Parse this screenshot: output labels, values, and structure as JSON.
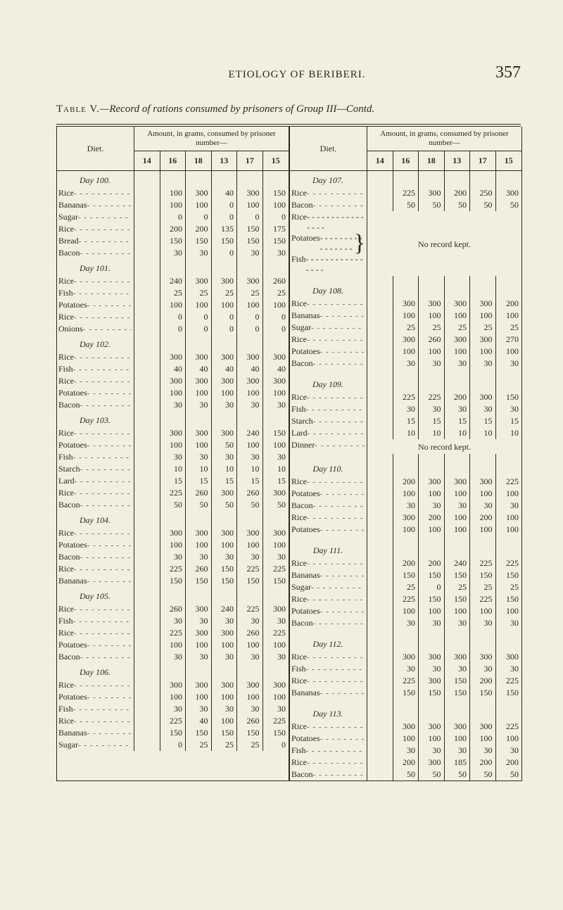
{
  "running_head": {
    "title": "ETIOLOGY OF BERIBERI.",
    "page_no": "357"
  },
  "caption": {
    "prefix": "Table V.",
    "body": "—Record of rations consumed by prisoners of Group III—Contd."
  },
  "header": {
    "diet": "Diet.",
    "amount": "Amount, in grams, consumed by prisoner number—"
  },
  "left": {
    "cols": [
      "14",
      "16",
      "18",
      "13",
      "17",
      "15"
    ],
    "rows": [
      {
        "type": "day",
        "label": "Day 100."
      },
      {
        "label": "Rice",
        "v": [
          "",
          "100",
          "300",
          "40",
          "300",
          "150"
        ]
      },
      {
        "label": "Bananas",
        "v": [
          "",
          "100",
          "100",
          "0",
          "100",
          "100"
        ]
      },
      {
        "label": "Sugar",
        "v": [
          "",
          "0",
          "0",
          "0",
          "0",
          "0"
        ]
      },
      {
        "label": "Rice",
        "v": [
          "",
          "200",
          "200",
          "135",
          "150",
          "175"
        ]
      },
      {
        "label": "Bread",
        "v": [
          "",
          "150",
          "150",
          "150",
          "150",
          "150"
        ]
      },
      {
        "label": "Bacon",
        "v": [
          "",
          "30",
          "30",
          "0",
          "30",
          "30"
        ]
      },
      {
        "type": "day",
        "label": "Day 101."
      },
      {
        "label": "Rice",
        "v": [
          "",
          "240",
          "300",
          "300",
          "300",
          "260"
        ]
      },
      {
        "label": "Fish",
        "v": [
          "",
          "25",
          "25",
          "25",
          "25",
          "25"
        ]
      },
      {
        "label": "Potatoes",
        "v": [
          "",
          "100",
          "100",
          "100",
          "100",
          "100"
        ]
      },
      {
        "label": "Rice",
        "v": [
          "",
          "0",
          "0",
          "0",
          "0",
          "0"
        ]
      },
      {
        "label": "Onions",
        "v": [
          "",
          "0",
          "0",
          "0",
          "0",
          "0"
        ]
      },
      {
        "type": "day",
        "label": "Day 102."
      },
      {
        "label": "Rice",
        "v": [
          "",
          "300",
          "300",
          "300",
          "300",
          "300"
        ]
      },
      {
        "label": "Fish",
        "v": [
          "",
          "40",
          "40",
          "40",
          "40",
          "40"
        ]
      },
      {
        "label": "Rice",
        "v": [
          "",
          "300",
          "300",
          "300",
          "300",
          "300"
        ]
      },
      {
        "label": "Potatoes",
        "v": [
          "",
          "100",
          "100",
          "100",
          "100",
          "100"
        ]
      },
      {
        "label": "Bacon",
        "v": [
          "",
          "30",
          "30",
          "30",
          "30",
          "30"
        ]
      },
      {
        "type": "day",
        "label": "Day 103."
      },
      {
        "label": "Rice",
        "v": [
          "",
          "300",
          "300",
          "300",
          "240",
          "150"
        ]
      },
      {
        "label": "Potatoes",
        "v": [
          "",
          "100",
          "100",
          "50",
          "100",
          "100"
        ]
      },
      {
        "label": "Fish",
        "v": [
          "",
          "30",
          "30",
          "30",
          "30",
          "30"
        ]
      },
      {
        "label": "Starch",
        "v": [
          "",
          "10",
          "10",
          "10",
          "10",
          "10"
        ]
      },
      {
        "label": "Lard",
        "v": [
          "",
          "15",
          "15",
          "15",
          "15",
          "15"
        ]
      },
      {
        "label": "Rice",
        "v": [
          "",
          "225",
          "260",
          "300",
          "260",
          "300"
        ]
      },
      {
        "label": "Bacon",
        "v": [
          "",
          "50",
          "50",
          "50",
          "50",
          "50"
        ]
      },
      {
        "type": "day",
        "label": "Day 104."
      },
      {
        "label": "Rice",
        "v": [
          "",
          "300",
          "300",
          "300",
          "300",
          "300"
        ]
      },
      {
        "label": "Potatoes",
        "v": [
          "",
          "100",
          "100",
          "100",
          "100",
          "100"
        ]
      },
      {
        "label": "Bacon",
        "v": [
          "",
          "30",
          "30",
          "30",
          "30",
          "30"
        ]
      },
      {
        "label": "Rice",
        "v": [
          "",
          "225",
          "260",
          "150",
          "225",
          "225"
        ]
      },
      {
        "label": "Bananas",
        "v": [
          "",
          "150",
          "150",
          "150",
          "150",
          "150"
        ]
      },
      {
        "type": "day",
        "label": "Day 105."
      },
      {
        "label": "Rice",
        "v": [
          "",
          "260",
          "300",
          "240",
          "225",
          "300"
        ]
      },
      {
        "label": "Fish",
        "v": [
          "",
          "30",
          "30",
          "30",
          "30",
          "30"
        ]
      },
      {
        "label": "Rice",
        "v": [
          "",
          "225",
          "300",
          "300",
          "260",
          "225"
        ]
      },
      {
        "label": "Potatoes",
        "v": [
          "",
          "100",
          "100",
          "100",
          "100",
          "100"
        ]
      },
      {
        "label": "Bacon",
        "v": [
          "",
          "30",
          "30",
          "30",
          "30",
          "30"
        ]
      },
      {
        "type": "day",
        "label": "Day 106."
      },
      {
        "label": "Rice",
        "v": [
          "",
          "300",
          "300",
          "300",
          "300",
          "300"
        ]
      },
      {
        "label": "Potatoes",
        "v": [
          "",
          "100",
          "100",
          "100",
          "100",
          "100"
        ]
      },
      {
        "label": "Fish",
        "v": [
          "",
          "30",
          "30",
          "30",
          "30",
          "30"
        ]
      },
      {
        "label": "Rice",
        "v": [
          "",
          "225",
          "40",
          "100",
          "260",
          "225"
        ]
      },
      {
        "label": "Bananas",
        "v": [
          "",
          "150",
          "150",
          "150",
          "150",
          "150"
        ]
      },
      {
        "label": "Sugar",
        "v": [
          "",
          "0",
          "25",
          "25",
          "25",
          "0"
        ]
      }
    ]
  },
  "right": {
    "cols": [
      "14",
      "16",
      "18",
      "13",
      "17",
      "15"
    ],
    "rows": [
      {
        "type": "day",
        "label": "Day 107."
      },
      {
        "label": "Rice",
        "v": [
          "",
          "225",
          "300",
          "200",
          "250",
          "300"
        ]
      },
      {
        "label": "Bacon",
        "v": [
          "",
          "50",
          "50",
          "50",
          "50",
          "50"
        ]
      },
      {
        "type": "brace",
        "labels": [
          "Rice",
          "Potatoes",
          "Fish"
        ],
        "note": "No record kept."
      },
      {
        "type": "spacer"
      },
      {
        "type": "day",
        "label": "Day 108."
      },
      {
        "label": "Rice",
        "v": [
          "",
          "300",
          "300",
          "300",
          "300",
          "200"
        ]
      },
      {
        "label": "Bananas",
        "v": [
          "",
          "100",
          "100",
          "100",
          "100",
          "100"
        ]
      },
      {
        "label": "Sugar",
        "v": [
          "",
          "25",
          "25",
          "25",
          "25",
          "25"
        ]
      },
      {
        "label": "Rice",
        "v": [
          "",
          "300",
          "260",
          "300",
          "300",
          "270"
        ]
      },
      {
        "label": "Potatoes",
        "v": [
          "",
          "100",
          "100",
          "100",
          "100",
          "100"
        ]
      },
      {
        "label": "Bacon",
        "v": [
          "",
          "30",
          "30",
          "30",
          "30",
          "30"
        ]
      },
      {
        "type": "spacer"
      },
      {
        "type": "day",
        "label": "Day 109."
      },
      {
        "label": "Rice",
        "v": [
          "",
          "225",
          "225",
          "200",
          "300",
          "150"
        ]
      },
      {
        "label": "Fish",
        "v": [
          "",
          "30",
          "30",
          "30",
          "30",
          "30"
        ]
      },
      {
        "label": "Starch",
        "v": [
          "",
          "15",
          "15",
          "15",
          "15",
          "15"
        ]
      },
      {
        "label": "Lard",
        "v": [
          "",
          "10",
          "10",
          "10",
          "10",
          "10"
        ]
      },
      {
        "type": "note",
        "label": "Dinner",
        "note": "No record kept."
      },
      {
        "type": "spacer"
      },
      {
        "type": "day",
        "label": "Day 110."
      },
      {
        "label": "Rice",
        "v": [
          "",
          "200",
          "300",
          "300",
          "300",
          "225"
        ]
      },
      {
        "label": "Potatoes",
        "v": [
          "",
          "100",
          "100",
          "100",
          "100",
          "100"
        ]
      },
      {
        "label": "Bacon",
        "v": [
          "",
          "30",
          "30",
          "30",
          "30",
          "30"
        ]
      },
      {
        "label": "Rice",
        "v": [
          "",
          "300",
          "200",
          "100",
          "200",
          "100"
        ]
      },
      {
        "label": "Potatoes",
        "v": [
          "",
          "100",
          "100",
          "100",
          "100",
          "100"
        ]
      },
      {
        "type": "spacer"
      },
      {
        "type": "day",
        "label": "Day 111."
      },
      {
        "label": "Rice",
        "v": [
          "",
          "200",
          "200",
          "240",
          "225",
          "225"
        ]
      },
      {
        "label": "Bananas",
        "v": [
          "",
          "150",
          "150",
          "150",
          "150",
          "150"
        ]
      },
      {
        "label": "Sugar",
        "v": [
          "",
          "25",
          "0",
          "25",
          "25",
          "25"
        ]
      },
      {
        "label": "Rice",
        "v": [
          "",
          "225",
          "150",
          "150",
          "225",
          "150"
        ]
      },
      {
        "label": "Potatoes",
        "v": [
          "",
          "100",
          "100",
          "100",
          "100",
          "100"
        ]
      },
      {
        "label": "Bacon",
        "v": [
          "",
          "30",
          "30",
          "30",
          "30",
          "30"
        ]
      },
      {
        "type": "spacer"
      },
      {
        "type": "day",
        "label": "Day 112."
      },
      {
        "label": "Rice",
        "v": [
          "",
          "300",
          "300",
          "300",
          "300",
          "300"
        ]
      },
      {
        "label": "Fish",
        "v": [
          "",
          "30",
          "30",
          "30",
          "30",
          "30"
        ]
      },
      {
        "label": "Rice",
        "v": [
          "",
          "225",
          "300",
          "150",
          "200",
          "225"
        ]
      },
      {
        "label": "Bananas",
        "v": [
          "",
          "150",
          "150",
          "150",
          "150",
          "150"
        ]
      },
      {
        "type": "spacer"
      },
      {
        "type": "day",
        "label": "Day 113."
      },
      {
        "label": "Rice",
        "v": [
          "",
          "300",
          "300",
          "300",
          "300",
          "225"
        ]
      },
      {
        "label": "Potatoes",
        "v": [
          "",
          "100",
          "100",
          "100",
          "100",
          "100"
        ]
      },
      {
        "label": "Fish",
        "v": [
          "",
          "30",
          "30",
          "30",
          "30",
          "30"
        ]
      },
      {
        "label": "Rice",
        "v": [
          "",
          "200",
          "300",
          "185",
          "200",
          "200"
        ]
      },
      {
        "label": "Bacon",
        "v": [
          "",
          "50",
          "50",
          "50",
          "50",
          "50"
        ]
      }
    ]
  },
  "colors": {
    "bg": "#f3efde",
    "fg": "#2a2a1f",
    "leader": "#555543"
  },
  "fonts": {
    "body_family": "Times New Roman / Georgia serif",
    "body_size_pt": 12,
    "running_title_pt": 15,
    "page_no_pt": 24
  }
}
